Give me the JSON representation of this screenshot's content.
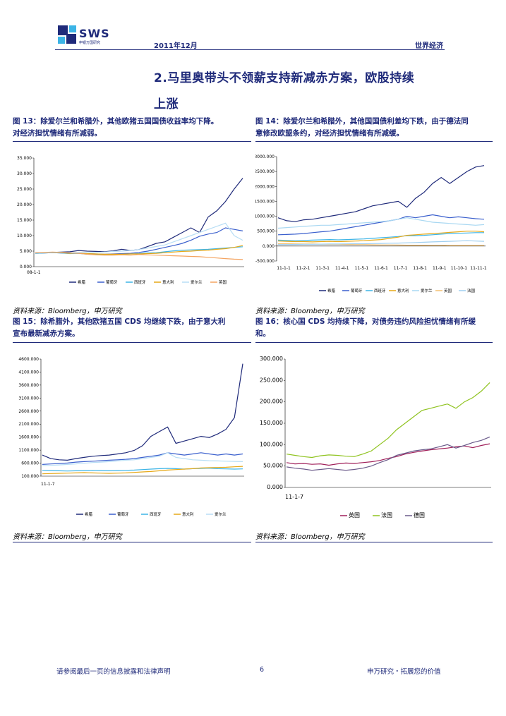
{
  "header": {
    "brand_text": "SWS",
    "brand_sub": "申银万国研究",
    "date": "2011年12月",
    "section": "世界经济",
    "brand_color": "#1f2a7a"
  },
  "section_title": {
    "line1": "2.马里奥带头不领薪支持新减赤方案，欧股持续",
    "line2": "上涨"
  },
  "figures": [
    {
      "caption_line1": "图 13：除爱尔兰和希腊外，其他欧猪五国国债收益率均下降。",
      "caption_line2": "对经济担忧情绪有所减弱。",
      "source": "资料来源：Bloomberg，申万研究"
    },
    {
      "caption_line1": "图 14：除爱尔兰和希腊外，其他国国债利差均下跌，由于德法同",
      "caption_line2": "意修改欧盟条约，对经济担忧情绪有所减缓。",
      "source": "资料来源：Bloomberg，申万研究"
    },
    {
      "caption_line1": "图 15：除希腊外，其他欧猪五国 CDS 均继续下跌，由于意大利",
      "caption_line2": "宣布最新减赤方案。",
      "source": "资料来源：Bloomberg，申万研究"
    },
    {
      "caption_line1": "图 16：核心国 CDS 均持续下降，对债务违约风险担忧情绪有所缓",
      "caption_line2": "和。",
      "source": "资料来源：Bloomberg，申万研究"
    }
  ],
  "chart_data": [
    {
      "type": "line",
      "ylim": [
        0,
        35
      ],
      "yticks": [
        "35.000",
        "30.000",
        "25.000",
        "20.000",
        "15.000",
        "10.000",
        "5.000",
        "0.000"
      ],
      "xticks": [
        "08-1-1"
      ],
      "series": [
        {
          "name": "希腊",
          "color": "#1f2a7a",
          "values": [
            4.4,
            4.5,
            4.6,
            4.7,
            4.8,
            5.2,
            5.0,
            4.9,
            4.8,
            5.1,
            5.6,
            5.2,
            5.5,
            6.5,
            7.5,
            8.0,
            9.5,
            11.0,
            12.5,
            11.0,
            16.0,
            18.0,
            21.0,
            25.0,
            28.5
          ]
        },
        {
          "name": "葡萄牙",
          "color": "#3a5fcd",
          "values": [
            4.3,
            4.4,
            4.5,
            4.4,
            4.3,
            4.4,
            4.2,
            4.1,
            4.0,
            4.1,
            4.2,
            4.3,
            4.6,
            5.0,
            5.6,
            6.2,
            6.8,
            7.5,
            8.5,
            9.8,
            10.5,
            11.0,
            12.5,
            12.0,
            11.5
          ]
        },
        {
          "name": "西班牙",
          "color": "#3cb4e6",
          "values": [
            4.3,
            4.4,
            4.5,
            4.4,
            4.2,
            4.3,
            4.0,
            3.9,
            3.8,
            3.9,
            4.0,
            4.1,
            4.2,
            4.4,
            4.5,
            4.8,
            5.1,
            5.3,
            5.4,
            5.5,
            5.6,
            5.8,
            6.0,
            6.2,
            6.4
          ]
        },
        {
          "name": "意大利",
          "color": "#e6a817",
          "values": [
            4.4,
            4.5,
            4.6,
            4.5,
            4.3,
            4.4,
            4.2,
            4.1,
            4.0,
            4.0,
            4.0,
            4.1,
            4.1,
            4.2,
            4.3,
            4.5,
            4.7,
            4.9,
            5.0,
            5.2,
            5.3,
            5.6,
            5.8,
            6.2,
            6.8
          ]
        },
        {
          "name": "爱尔兰",
          "color": "#b8def5",
          "values": [
            4.4,
            4.5,
            4.6,
            4.6,
            4.5,
            4.6,
            4.5,
            4.6,
            4.7,
            4.9,
            5.0,
            5.2,
            5.5,
            6.0,
            6.5,
            7.0,
            8.0,
            9.0,
            10.0,
            11.0,
            12.0,
            13.0,
            14.0,
            10.0,
            8.5
          ]
        },
        {
          "name": "英国",
          "color": "#f4a460",
          "values": [
            4.6,
            4.6,
            4.7,
            4.6,
            4.4,
            4.3,
            4.0,
            3.8,
            3.7,
            3.7,
            3.8,
            3.7,
            3.9,
            3.8,
            3.7,
            3.6,
            3.5,
            3.4,
            3.3,
            3.2,
            3.0,
            2.8,
            2.6,
            2.4,
            2.3
          ]
        }
      ]
    },
    {
      "type": "line",
      "ylim": [
        -500,
        3000
      ],
      "yticks": [
        "3000.000",
        "2500.000",
        "2000.000",
        "1500.000",
        "1000.000",
        "500.000",
        "0.000",
        "-500.000"
      ],
      "xticks": [
        "11-1-1",
        "11-2-1",
        "11-3-1",
        "11-4-1",
        "11-5-1",
        "11-6-1",
        "11-7-1",
        "11-8-1",
        "11-9-1",
        "11-10-1",
        "11-11-1"
      ],
      "series": [
        {
          "name": "希腊",
          "color": "#1f2a7a",
          "values": [
            950,
            850,
            820,
            880,
            900,
            950,
            1000,
            1050,
            1100,
            1150,
            1250,
            1350,
            1400,
            1450,
            1500,
            1300,
            1600,
            1800,
            2100,
            2300,
            2100,
            2300,
            2500,
            2650,
            2700
          ]
        },
        {
          "name": "葡萄牙",
          "color": "#3a5fcd",
          "values": [
            380,
            390,
            400,
            420,
            450,
            480,
            500,
            550,
            600,
            650,
            700,
            750,
            800,
            850,
            900,
            1000,
            950,
            1000,
            1050,
            1000,
            950,
            980,
            950,
            920,
            900
          ]
        },
        {
          "name": "西班牙",
          "color": "#3cb4e6",
          "values": [
            200,
            190,
            180,
            190,
            200,
            210,
            220,
            210,
            220,
            230,
            240,
            260,
            280,
            300,
            320,
            350,
            350,
            360,
            380,
            400,
            420,
            430,
            440,
            450,
            450
          ]
        },
        {
          "name": "意大利",
          "color": "#e6a817",
          "values": [
            170,
            160,
            150,
            150,
            140,
            150,
            160,
            150,
            160,
            170,
            180,
            200,
            220,
            260,
            300,
            360,
            380,
            400,
            420,
            440,
            460,
            480,
            500,
            500,
            480
          ]
        },
        {
          "name": "爱尔兰",
          "color": "#a9d8f2",
          "values": [
            600,
            620,
            640,
            660,
            680,
            700,
            700,
            720,
            740,
            760,
            780,
            800,
            820,
            850,
            900,
            950,
            900,
            850,
            800,
            780,
            760,
            740,
            720,
            700,
            720
          ]
        },
        {
          "name": "英国",
          "color": "#f4c070",
          "values": [
            80,
            80,
            75,
            70,
            70,
            65,
            60,
            60,
            55,
            50,
            50,
            45,
            40,
            40,
            35,
            30,
            30,
            30,
            25,
            25,
            20,
            20,
            20,
            20,
            20
          ]
        },
        {
          "name": "法国",
          "color": "#9fcff0",
          "values": [
            50,
            50,
            55,
            60,
            60,
            65,
            70,
            70,
            75,
            80,
            80,
            85,
            90,
            95,
            100,
            110,
            120,
            130,
            140,
            150,
            160,
            170,
            180,
            170,
            160
          ]
        }
      ]
    },
    {
      "type": "line",
      "ylim": [
        100,
        5100
      ],
      "yticks": [
        "4600.000",
        "4100.000",
        "3600.000",
        "3100.000",
        "2600.000",
        "2100.000",
        "1600.000",
        "1100.000",
        "600.000",
        "100.000"
      ],
      "xticks": [
        "11-1-7"
      ],
      "series": [
        {
          "name": "希腊",
          "color": "#1f2a7a",
          "values": [
            1000,
            850,
            800,
            780,
            850,
            900,
            950,
            980,
            1000,
            1050,
            1100,
            1200,
            1400,
            1800,
            2000,
            2200,
            1500,
            1600,
            1700,
            1800,
            1750,
            1900,
            2100,
            2600,
            4900
          ]
        },
        {
          "name": "葡萄牙",
          "color": "#3a5fcd",
          "values": [
            600,
            620,
            640,
            660,
            700,
            720,
            740,
            760,
            780,
            800,
            820,
            850,
            900,
            950,
            1000,
            1100,
            1050,
            1000,
            1050,
            1100,
            1050,
            1000,
            1050,
            1000,
            1050
          ]
        },
        {
          "name": "西班牙",
          "color": "#3cb4e6",
          "values": [
            350,
            340,
            330,
            320,
            330,
            340,
            350,
            340,
            330,
            340,
            350,
            360,
            380,
            400,
            420,
            430,
            420,
            400,
            420,
            430,
            440,
            420,
            410,
            400,
            410
          ]
        },
        {
          "name": "意大利",
          "color": "#e6a817",
          "values": [
            200,
            210,
            220,
            230,
            240,
            250,
            240,
            230,
            220,
            230,
            240,
            260,
            280,
            300,
            330,
            360,
            380,
            400,
            420,
            450,
            460,
            470,
            480,
            500,
            520
          ]
        },
        {
          "name": "爱尔兰",
          "color": "#b8def5",
          "values": [
            550,
            560,
            580,
            600,
            620,
            650,
            680,
            700,
            720,
            750,
            780,
            800,
            850,
            900,
            950,
            1100,
            900,
            850,
            800,
            780,
            760,
            750,
            740,
            730,
            720
          ]
        }
      ]
    },
    {
      "type": "line",
      "ylim": [
        0,
        300
      ],
      "yticks": [
        "300.000",
        "250.000",
        "200.000",
        "150.000",
        "100.000",
        "50.000",
        "0.000"
      ],
      "xticks": [
        "11-1-7"
      ],
      "series": [
        {
          "name": "英国",
          "color": "#a0205a",
          "values": [
            58,
            55,
            56,
            54,
            55,
            52,
            55,
            57,
            56,
            58,
            60,
            63,
            68,
            72,
            78,
            82,
            85,
            88,
            90,
            92,
            95,
            97,
            93,
            98,
            102
          ]
        },
        {
          "name": "法国",
          "color": "#8fc31f",
          "values": [
            78,
            75,
            72,
            70,
            74,
            76,
            75,
            73,
            72,
            78,
            85,
            100,
            115,
            135,
            150,
            165,
            180,
            185,
            190,
            195,
            185,
            200,
            210,
            225,
            245
          ]
        },
        {
          "name": "德国",
          "color": "#6a5a8a",
          "values": [
            48,
            45,
            43,
            40,
            42,
            44,
            42,
            40,
            42,
            45,
            50,
            58,
            65,
            75,
            80,
            85,
            88,
            90,
            95,
            100,
            92,
            98,
            105,
            110,
            118
          ]
        }
      ]
    }
  ],
  "footer": {
    "disclaimer": "请参阅最后一页的信息披露和法律声明",
    "page": "6",
    "slogan": "申万研究・拓展您的价值"
  }
}
